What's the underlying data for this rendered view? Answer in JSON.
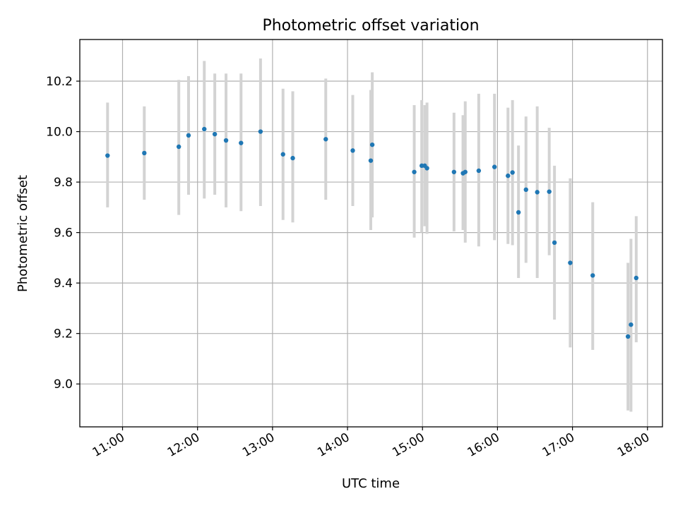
{
  "chart_data": {
    "type": "scatter",
    "title": "Photometric offset variation",
    "xlabel": "UTC time",
    "ylabel": "Photometric offset",
    "xlim_hours": [
      10.43,
      18.2
    ],
    "ylim": [
      8.83,
      10.365
    ],
    "grid": true,
    "marker_color": "#1f77b4",
    "errorbar_color": "#d3d3d3",
    "x_ticks": [
      {
        "value": 11,
        "label": "11:00"
      },
      {
        "value": 12,
        "label": "12:00"
      },
      {
        "value": 13,
        "label": "13:00"
      },
      {
        "value": 14,
        "label": "14:00"
      },
      {
        "value": 15,
        "label": "15:00"
      },
      {
        "value": 16,
        "label": "16:00"
      },
      {
        "value": 17,
        "label": "17:00"
      },
      {
        "value": 18,
        "label": "18:00"
      }
    ],
    "y_ticks": [
      {
        "value": 9.0,
        "label": "9.0"
      },
      {
        "value": 9.2,
        "label": "9.2"
      },
      {
        "value": 9.4,
        "label": "9.4"
      },
      {
        "value": 9.6,
        "label": "9.6"
      },
      {
        "value": 9.8,
        "label": "9.8"
      },
      {
        "value": 10.0,
        "label": "10.0"
      },
      {
        "value": 10.2,
        "label": "10.2"
      }
    ],
    "points": [
      {
        "t": 10.8,
        "y": 9.905,
        "lo": 9.7,
        "hi": 10.115
      },
      {
        "t": 11.29,
        "y": 9.915,
        "lo": 9.73,
        "hi": 10.1
      },
      {
        "t": 11.75,
        "y": 9.94,
        "lo": 9.67,
        "hi": 10.205
      },
      {
        "t": 11.88,
        "y": 9.985,
        "lo": 9.75,
        "hi": 10.22
      },
      {
        "t": 12.09,
        "y": 10.01,
        "lo": 9.735,
        "hi": 10.28
      },
      {
        "t": 12.23,
        "y": 9.99,
        "lo": 9.75,
        "hi": 10.23
      },
      {
        "t": 12.38,
        "y": 9.965,
        "lo": 9.7,
        "hi": 10.23
      },
      {
        "t": 12.58,
        "y": 9.955,
        "lo": 9.685,
        "hi": 10.23
      },
      {
        "t": 12.84,
        "y": 10.0,
        "lo": 9.705,
        "hi": 10.29
      },
      {
        "t": 13.14,
        "y": 9.91,
        "lo": 9.65,
        "hi": 10.17
      },
      {
        "t": 13.27,
        "y": 9.895,
        "lo": 9.64,
        "hi": 10.16
      },
      {
        "t": 13.71,
        "y": 9.97,
        "lo": 9.73,
        "hi": 10.21
      },
      {
        "t": 14.07,
        "y": 9.925,
        "lo": 9.705,
        "hi": 10.145
      },
      {
        "t": 14.31,
        "y": 9.885,
        "lo": 9.61,
        "hi": 10.165
      },
      {
        "t": 14.33,
        "y": 9.948,
        "lo": 9.66,
        "hi": 10.235
      },
      {
        "t": 14.89,
        "y": 9.84,
        "lo": 9.58,
        "hi": 10.105
      },
      {
        "t": 14.99,
        "y": 9.865,
        "lo": 9.6,
        "hi": 10.125
      },
      {
        "t": 15.03,
        "y": 9.865,
        "lo": 9.625,
        "hi": 10.105
      },
      {
        "t": 15.06,
        "y": 9.855,
        "lo": 9.595,
        "hi": 10.115
      },
      {
        "t": 15.42,
        "y": 9.84,
        "lo": 9.605,
        "hi": 10.075
      },
      {
        "t": 15.54,
        "y": 9.835,
        "lo": 9.61,
        "hi": 10.065
      },
      {
        "t": 15.57,
        "y": 9.84,
        "lo": 9.56,
        "hi": 10.12
      },
      {
        "t": 15.75,
        "y": 9.845,
        "lo": 9.545,
        "hi": 10.15
      },
      {
        "t": 15.96,
        "y": 9.86,
        "lo": 9.57,
        "hi": 10.15
      },
      {
        "t": 16.14,
        "y": 9.825,
        "lo": 9.555,
        "hi": 10.095
      },
      {
        "t": 16.2,
        "y": 9.838,
        "lo": 9.55,
        "hi": 10.125
      },
      {
        "t": 16.28,
        "y": 9.68,
        "lo": 9.42,
        "hi": 9.945
      },
      {
        "t": 16.38,
        "y": 9.77,
        "lo": 9.48,
        "hi": 10.06
      },
      {
        "t": 16.53,
        "y": 9.76,
        "lo": 9.42,
        "hi": 10.1
      },
      {
        "t": 16.69,
        "y": 9.762,
        "lo": 9.51,
        "hi": 10.015
      },
      {
        "t": 16.76,
        "y": 9.56,
        "lo": 9.255,
        "hi": 9.865
      },
      {
        "t": 16.97,
        "y": 9.48,
        "lo": 9.145,
        "hi": 9.815
      },
      {
        "t": 17.27,
        "y": 9.43,
        "lo": 9.135,
        "hi": 9.72
      },
      {
        "t": 17.74,
        "y": 9.188,
        "lo": 8.895,
        "hi": 9.48
      },
      {
        "t": 17.78,
        "y": 9.235,
        "lo": 8.89,
        "hi": 9.575
      },
      {
        "t": 17.85,
        "y": 9.42,
        "lo": 9.165,
        "hi": 9.665
      }
    ]
  }
}
